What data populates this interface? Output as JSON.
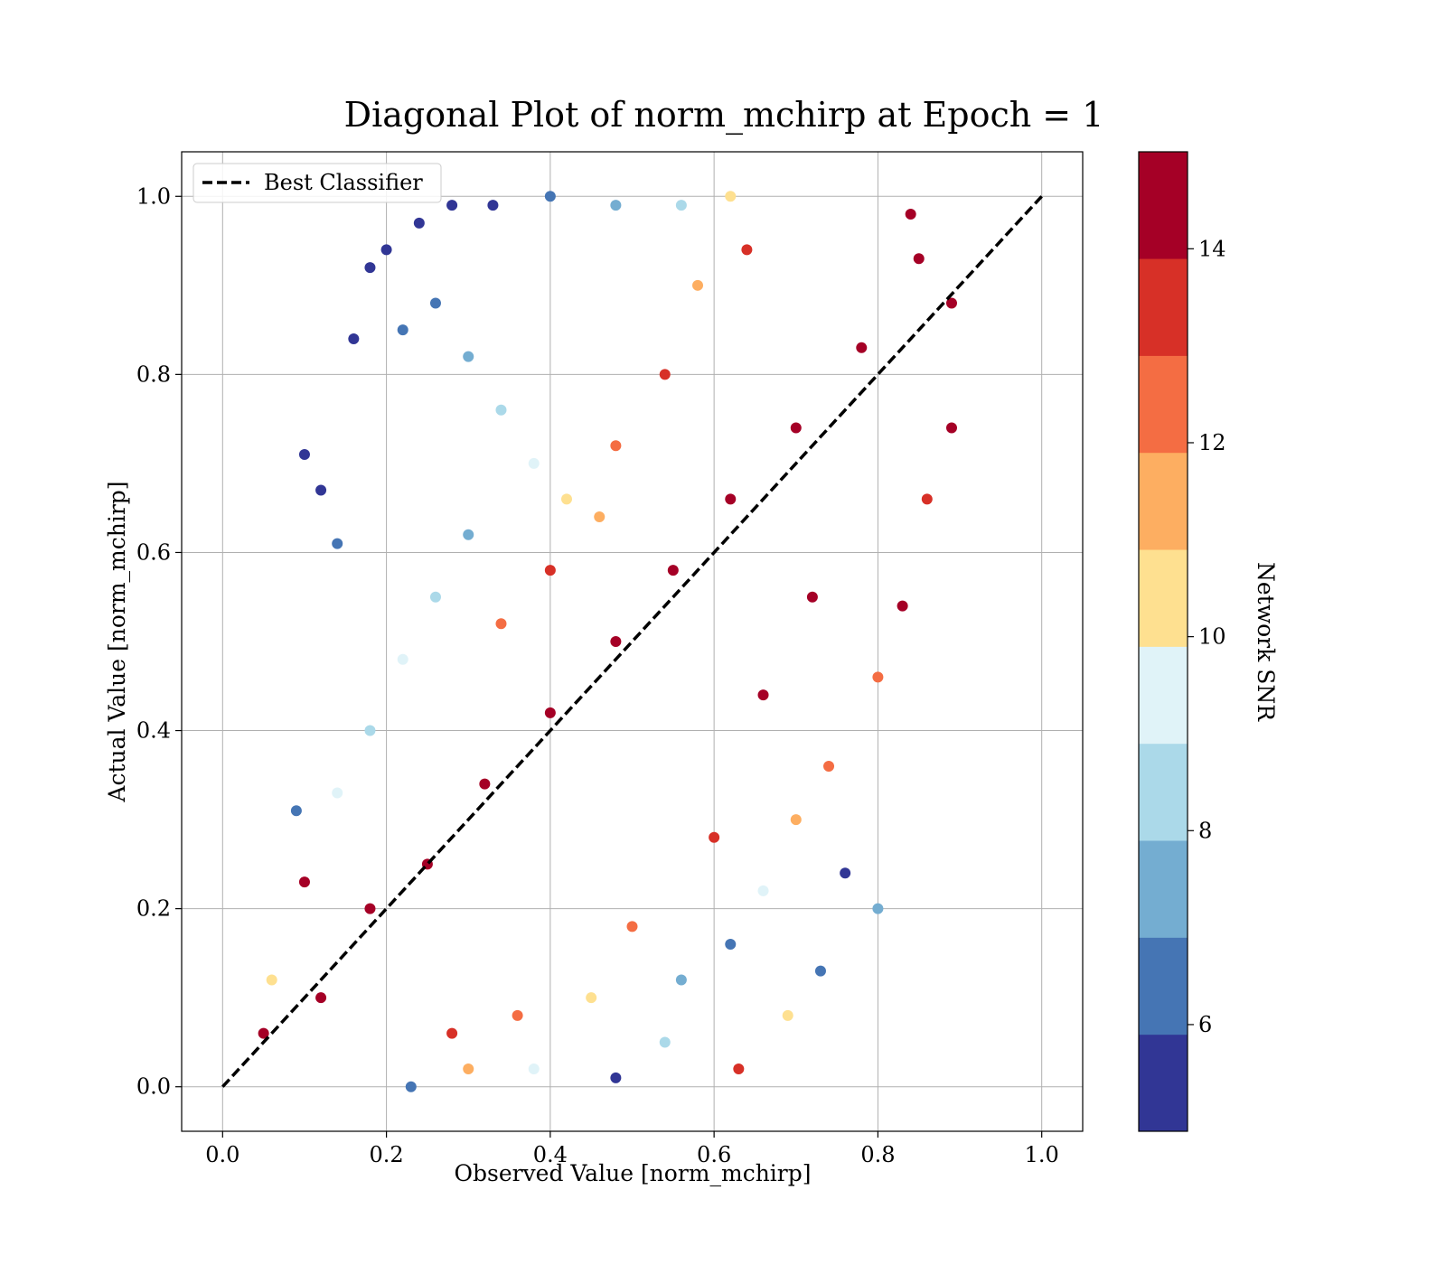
{
  "chart_data": {
    "type": "scatter",
    "title": "Diagonal Plot of norm_mchirp at Epoch = 1",
    "xlabel": "Observed Value [norm_mchirp]",
    "ylabel": "Actual Value [norm_mchirp]",
    "xlim": [
      -0.05,
      1.05
    ],
    "ylim": [
      -0.05,
      1.05
    ],
    "xticks": [
      0.0,
      0.2,
      0.4,
      0.6,
      0.8,
      1.0
    ],
    "yticks": [
      0.0,
      0.2,
      0.4,
      0.6,
      0.8,
      1.0
    ],
    "xtick_labels": [
      "0.0",
      "0.2",
      "0.4",
      "0.6",
      "0.8",
      "1.0"
    ],
    "ytick_labels": [
      "0.0",
      "0.2",
      "0.4",
      "0.6",
      "0.8",
      "1.0"
    ],
    "grid": true,
    "legend": {
      "position": "top-left",
      "entries": [
        {
          "label": "Best Classifier",
          "style": "dashed-line",
          "color": "#000000"
        }
      ]
    },
    "reference_line": {
      "name": "Best Classifier",
      "x": [
        0.0,
        1.0
      ],
      "y": [
        0.0,
        1.0
      ]
    },
    "colorbar": {
      "label": "Network SNR",
      "range": [
        4.9,
        15.0
      ],
      "ticks": [
        6,
        8,
        10,
        12,
        14
      ],
      "tick_labels": [
        "6",
        "8",
        "10",
        "12",
        "14"
      ],
      "levels": [
        {
          "min": 4.9,
          "max": 5.9,
          "color": "#313695"
        },
        {
          "min": 5.9,
          "max": 6.9,
          "color": "#4575b4"
        },
        {
          "min": 6.9,
          "max": 7.9,
          "color": "#74add1"
        },
        {
          "min": 7.9,
          "max": 8.9,
          "color": "#abd9e9"
        },
        {
          "min": 8.9,
          "max": 9.9,
          "color": "#e0f3f8"
        },
        {
          "min": 9.9,
          "max": 10.9,
          "color": "#fee090"
        },
        {
          "min": 10.9,
          "max": 11.9,
          "color": "#fdae61"
        },
        {
          "min": 11.9,
          "max": 12.9,
          "color": "#f46d43"
        },
        {
          "min": 12.9,
          "max": 13.9,
          "color": "#d73027"
        },
        {
          "min": 13.9,
          "max": 15.0,
          "color": "#a50026"
        }
      ]
    },
    "points": [
      {
        "x": 0.1,
        "y": 0.71,
        "snr": 5.2
      },
      {
        "x": 0.12,
        "y": 0.67,
        "snr": 5.3
      },
      {
        "x": 0.14,
        "y": 0.61,
        "snr": 6.1
      },
      {
        "x": 0.16,
        "y": 0.84,
        "snr": 5.1
      },
      {
        "x": 0.18,
        "y": 0.92,
        "snr": 5.4
      },
      {
        "x": 0.2,
        "y": 0.94,
        "snr": 5.2
      },
      {
        "x": 0.22,
        "y": 0.85,
        "snr": 6.3
      },
      {
        "x": 0.24,
        "y": 0.97,
        "snr": 5.5
      },
      {
        "x": 0.28,
        "y": 0.99,
        "snr": 5.3
      },
      {
        "x": 0.33,
        "y": 0.99,
        "snr": 5.6
      },
      {
        "x": 0.4,
        "y": 1.0,
        "snr": 6.8
      },
      {
        "x": 0.48,
        "y": 0.99,
        "snr": 7.5
      },
      {
        "x": 0.56,
        "y": 0.99,
        "snr": 8.6
      },
      {
        "x": 0.62,
        "y": 1.0,
        "snr": 10.2
      },
      {
        "x": 0.26,
        "y": 0.88,
        "snr": 6.0
      },
      {
        "x": 0.3,
        "y": 0.82,
        "snr": 7.2
      },
      {
        "x": 0.34,
        "y": 0.76,
        "snr": 8.4
      },
      {
        "x": 0.38,
        "y": 0.7,
        "snr": 9.5
      },
      {
        "x": 0.42,
        "y": 0.66,
        "snr": 10.6
      },
      {
        "x": 0.46,
        "y": 0.64,
        "snr": 11.5
      },
      {
        "x": 0.3,
        "y": 0.62,
        "snr": 7.8
      },
      {
        "x": 0.26,
        "y": 0.55,
        "snr": 8.8
      },
      {
        "x": 0.22,
        "y": 0.48,
        "snr": 9.4
      },
      {
        "x": 0.18,
        "y": 0.4,
        "snr": 8.2
      },
      {
        "x": 0.14,
        "y": 0.33,
        "snr": 9.8
      },
      {
        "x": 0.09,
        "y": 0.31,
        "snr": 6.5
      },
      {
        "x": 0.1,
        "y": 0.23,
        "snr": 14.5
      },
      {
        "x": 0.06,
        "y": 0.12,
        "snr": 10.4
      },
      {
        "x": 0.05,
        "y": 0.06,
        "snr": 14.2
      },
      {
        "x": 0.12,
        "y": 0.1,
        "snr": 14.8
      },
      {
        "x": 0.18,
        "y": 0.2,
        "snr": 14.9
      },
      {
        "x": 0.25,
        "y": 0.25,
        "snr": 14.7
      },
      {
        "x": 0.32,
        "y": 0.34,
        "snr": 14.9
      },
      {
        "x": 0.4,
        "y": 0.42,
        "snr": 14.8
      },
      {
        "x": 0.48,
        "y": 0.5,
        "snr": 14.9
      },
      {
        "x": 0.55,
        "y": 0.58,
        "snr": 14.6
      },
      {
        "x": 0.62,
        "y": 0.66,
        "snr": 14.9
      },
      {
        "x": 0.7,
        "y": 0.74,
        "snr": 14.8
      },
      {
        "x": 0.78,
        "y": 0.83,
        "snr": 14.9
      },
      {
        "x": 0.85,
        "y": 0.93,
        "snr": 14.7
      },
      {
        "x": 0.84,
        "y": 0.98,
        "snr": 14.4
      },
      {
        "x": 0.89,
        "y": 0.88,
        "snr": 14.3
      },
      {
        "x": 0.89,
        "y": 0.74,
        "snr": 14.6
      },
      {
        "x": 0.86,
        "y": 0.66,
        "snr": 13.4
      },
      {
        "x": 0.83,
        "y": 0.54,
        "snr": 14.1
      },
      {
        "x": 0.8,
        "y": 0.46,
        "snr": 12.5
      },
      {
        "x": 0.8,
        "y": 0.2,
        "snr": 7.6
      },
      {
        "x": 0.76,
        "y": 0.24,
        "snr": 5.3
      },
      {
        "x": 0.73,
        "y": 0.13,
        "snr": 6.2
      },
      {
        "x": 0.69,
        "y": 0.08,
        "snr": 10.3
      },
      {
        "x": 0.63,
        "y": 0.02,
        "snr": 13.2
      },
      {
        "x": 0.54,
        "y": 0.05,
        "snr": 8.7
      },
      {
        "x": 0.48,
        "y": 0.01,
        "snr": 5.5
      },
      {
        "x": 0.38,
        "y": 0.02,
        "snr": 9.1
      },
      {
        "x": 0.3,
        "y": 0.02,
        "snr": 11.4
      },
      {
        "x": 0.23,
        "y": 0.0,
        "snr": 6.6
      },
      {
        "x": 0.56,
        "y": 0.12,
        "snr": 7.1
      },
      {
        "x": 0.62,
        "y": 0.16,
        "snr": 5.9
      },
      {
        "x": 0.66,
        "y": 0.22,
        "snr": 9.0
      },
      {
        "x": 0.7,
        "y": 0.3,
        "snr": 11.2
      },
      {
        "x": 0.74,
        "y": 0.36,
        "snr": 12.3
      },
      {
        "x": 0.45,
        "y": 0.1,
        "snr": 10.8
      },
      {
        "x": 0.5,
        "y": 0.18,
        "snr": 12.8
      },
      {
        "x": 0.36,
        "y": 0.08,
        "snr": 12.1
      },
      {
        "x": 0.28,
        "y": 0.06,
        "snr": 13.3
      },
      {
        "x": 0.6,
        "y": 0.28,
        "snr": 13.1
      },
      {
        "x": 0.66,
        "y": 0.44,
        "snr": 14.8
      },
      {
        "x": 0.72,
        "y": 0.55,
        "snr": 14.9
      },
      {
        "x": 0.34,
        "y": 0.52,
        "snr": 12.6
      },
      {
        "x": 0.4,
        "y": 0.58,
        "snr": 13.5
      },
      {
        "x": 0.48,
        "y": 0.72,
        "snr": 12.4
      },
      {
        "x": 0.54,
        "y": 0.8,
        "snr": 13.6
      },
      {
        "x": 0.58,
        "y": 0.9,
        "snr": 11.6
      },
      {
        "x": 0.64,
        "y": 0.94,
        "snr": 12.9
      }
    ]
  }
}
